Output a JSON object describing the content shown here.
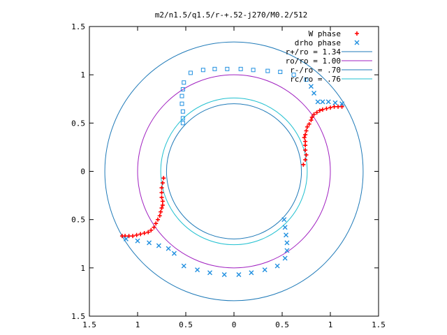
{
  "chart_data": {
    "type": "scatter",
    "title": "m2/n1.5/q1.5/r-+.52-j270/M0.2/512",
    "xlabel": "",
    "ylabel": "",
    "xlim": [
      -1.5,
      1.5
    ],
    "ylim": [
      -1.5,
      1.5
    ],
    "x_ticks": [
      -1.5,
      -1,
      -0.5,
      0,
      0.5,
      1,
      1.5
    ],
    "y_ticks": [
      -1.5,
      -1,
      -0.5,
      0,
      0.5,
      1,
      1.5
    ],
    "x_tick_labels": [
      "1.5",
      "1",
      "0.5",
      "0",
      "0.5",
      "1",
      "1.5"
    ],
    "y_tick_labels": [
      "1.5",
      "1",
      "0.5",
      "0",
      "0.5",
      "1",
      "1.5"
    ],
    "grid": false,
    "legend_position": "top-right",
    "circles": [
      {
        "label": "r+/ro = 1.34",
        "radius": 1.34,
        "color": "#1f7ab8"
      },
      {
        "label": "ro/ro = 1.00",
        "radius": 1.0,
        "color": "#a020c0"
      },
      {
        "label": "r-/ro = .70",
        "radius": 0.7,
        "color": "#1f7ab8"
      },
      {
        "label": "rc/ro = .76",
        "radius": 0.76,
        "color": "#20c0d0"
      }
    ],
    "series": [
      {
        "name": "W phase",
        "marker": "plus",
        "color": "#ff0000",
        "points": [
          [
            0.72,
            0.07
          ],
          [
            0.74,
            0.12
          ],
          [
            0.75,
            0.17
          ],
          [
            0.74,
            0.22
          ],
          [
            0.74,
            0.27
          ],
          [
            0.74,
            0.31
          ],
          [
            0.73,
            0.35
          ],
          [
            0.74,
            0.38
          ],
          [
            0.75,
            0.42
          ],
          [
            0.76,
            0.46
          ],
          [
            0.78,
            0.49
          ],
          [
            0.8,
            0.53
          ],
          [
            0.81,
            0.56
          ],
          [
            0.83,
            0.59
          ],
          [
            0.86,
            0.61
          ],
          [
            0.89,
            0.63
          ],
          [
            0.92,
            0.64
          ],
          [
            0.96,
            0.65
          ],
          [
            1.0,
            0.66
          ],
          [
            1.04,
            0.67
          ],
          [
            1.08,
            0.67
          ],
          [
            1.12,
            0.67
          ],
          [
            -0.73,
            -0.07
          ],
          [
            -0.74,
            -0.12
          ],
          [
            -0.75,
            -0.17
          ],
          [
            -0.75,
            -0.22
          ],
          [
            -0.75,
            -0.27
          ],
          [
            -0.74,
            -0.31
          ],
          [
            -0.74,
            -0.35
          ],
          [
            -0.75,
            -0.38
          ],
          [
            -0.76,
            -0.42
          ],
          [
            -0.77,
            -0.46
          ],
          [
            -0.79,
            -0.5
          ],
          [
            -0.81,
            -0.54
          ],
          [
            -0.83,
            -0.58
          ],
          [
            -0.86,
            -0.61
          ],
          [
            -0.89,
            -0.63
          ],
          [
            -0.93,
            -0.64
          ],
          [
            -0.97,
            -0.65
          ],
          [
            -1.01,
            -0.66
          ],
          [
            -1.05,
            -0.67
          ],
          [
            -1.09,
            -0.67
          ],
          [
            -1.13,
            -0.67
          ],
          [
            -1.16,
            -0.67
          ]
        ]
      },
      {
        "name": "drho phase",
        "marker": "cross_square",
        "color": "#1f8fe0",
        "points": [
          [
            1.12,
            0.7
          ],
          [
            1.05,
            0.71
          ],
          [
            0.98,
            0.72
          ],
          [
            0.92,
            0.72
          ],
          [
            0.87,
            0.72
          ],
          [
            0.83,
            0.81
          ],
          [
            0.8,
            0.88
          ],
          [
            0.75,
            0.95
          ],
          [
            0.62,
            1.0
          ],
          [
            0.48,
            1.03
          ],
          [
            0.35,
            1.04
          ],
          [
            0.2,
            1.05
          ],
          [
            0.07,
            1.06
          ],
          [
            -0.07,
            1.06
          ],
          [
            -0.2,
            1.06
          ],
          [
            -0.32,
            1.05
          ],
          [
            -0.45,
            1.02
          ],
          [
            -0.52,
            0.92
          ],
          [
            -0.53,
            0.85
          ],
          [
            -0.54,
            0.78
          ],
          [
            -0.54,
            0.7
          ],
          [
            -0.53,
            0.62
          ],
          [
            -0.53,
            0.55
          ],
          [
            -0.53,
            0.5
          ],
          [
            0.52,
            -0.5
          ],
          [
            0.53,
            -0.58
          ],
          [
            0.54,
            -0.66
          ],
          [
            0.55,
            -0.74
          ],
          [
            0.55,
            -0.82
          ],
          [
            0.53,
            -0.9
          ],
          [
            0.45,
            -0.98
          ],
          [
            0.32,
            -1.02
          ],
          [
            0.18,
            -1.05
          ],
          [
            0.05,
            -1.07
          ],
          [
            -0.1,
            -1.07
          ],
          [
            -0.25,
            -1.05
          ],
          [
            -0.38,
            -1.02
          ],
          [
            -0.52,
            -0.98
          ],
          [
            -0.62,
            -0.85
          ],
          [
            -0.68,
            -0.8
          ],
          [
            -0.78,
            -0.77
          ],
          [
            -0.88,
            -0.74
          ],
          [
            -1.0,
            -0.72
          ],
          [
            -1.12,
            -0.7
          ]
        ]
      }
    ]
  }
}
